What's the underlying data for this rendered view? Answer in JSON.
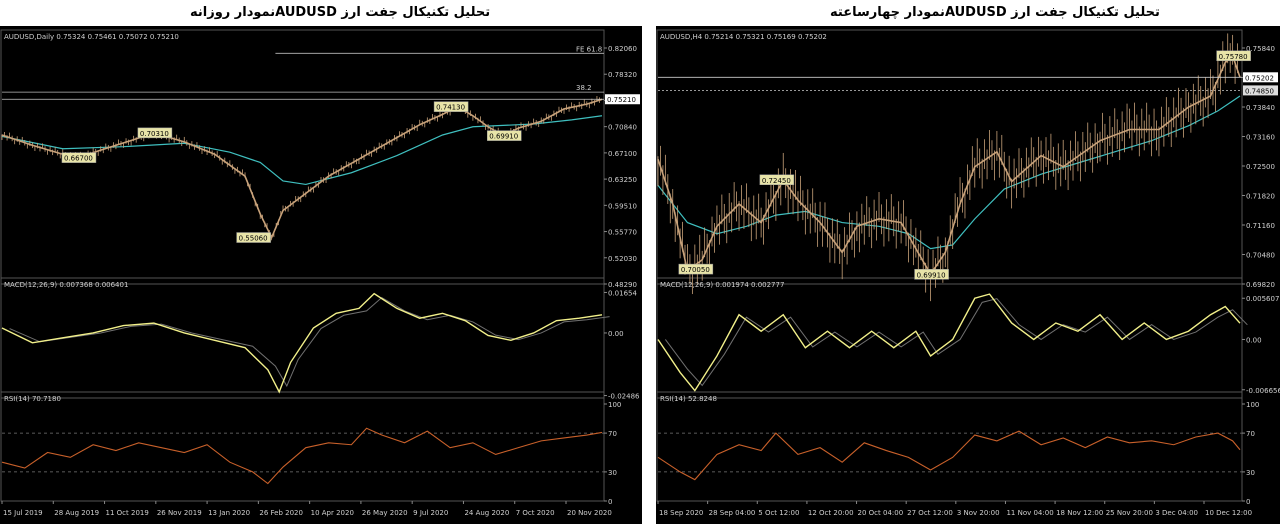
{
  "titles": {
    "left": "تحلیل تکنیکال جفت ارز  AUDUSDنمودار روزانه",
    "right": "تحلیل تکنیکال جفت ارز  AUDUSDنمودار چهارساعته"
  },
  "colors": {
    "background": "#000000",
    "grid": "#2a2a2a",
    "candle": "#c8a27a",
    "ma": "#3fbfbf",
    "macd": "#f2f08a",
    "signal": "#707070",
    "rsi": "#c8602a",
    "text": "#d0d0d0",
    "label_bg": "#e8e4a8"
  },
  "chart_data": [
    {
      "type": "line",
      "panel_id": "left",
      "price_header": "AUDUSD,Daily  0.75324 0.75461 0.75072 0.75210",
      "price_ticks": [
        "0.82060",
        "0.78320",
        "0.74580",
        "0.70840",
        "0.67100",
        "0.63250",
        "0.59510",
        "0.55770",
        "0.52030",
        "0.48290"
      ],
      "price_ylim": [
        0.4829,
        0.8355
      ],
      "current_price": "0.75210",
      "fib_labels": [
        {
          "text": "FE 61.8",
          "price": 0.819
        },
        {
          "text": "38.2",
          "price": 0.7625
        }
      ],
      "price_path": [
        [
          0,
          0.7
        ],
        [
          4,
          0.685
        ],
        [
          8,
          0.672
        ],
        [
          10,
          0.667
        ],
        [
          13,
          0.678
        ],
        [
          17,
          0.692
        ],
        [
          20,
          0.703
        ],
        [
          24,
          0.69
        ],
        [
          28,
          0.672
        ],
        [
          32,
          0.64
        ],
        [
          34,
          0.585
        ],
        [
          35.5,
          0.5506
        ],
        [
          37,
          0.59
        ],
        [
          40,
          0.615
        ],
        [
          43,
          0.64
        ],
        [
          47,
          0.665
        ],
        [
          51,
          0.69
        ],
        [
          55,
          0.715
        ],
        [
          58,
          0.73
        ],
        [
          60,
          0.7413
        ],
        [
          62,
          0.728
        ],
        [
          64,
          0.712
        ],
        [
          66,
          0.6991
        ],
        [
          68,
          0.71
        ],
        [
          71,
          0.72
        ],
        [
          74,
          0.738
        ],
        [
          77,
          0.745
        ],
        [
          79,
          0.752
        ]
      ],
      "ma_path": [
        [
          0,
          0.698
        ],
        [
          8,
          0.68
        ],
        [
          16,
          0.683
        ],
        [
          24,
          0.688
        ],
        [
          30,
          0.675
        ],
        [
          34,
          0.66
        ],
        [
          37,
          0.633
        ],
        [
          40,
          0.628
        ],
        [
          46,
          0.645
        ],
        [
          52,
          0.67
        ],
        [
          58,
          0.7
        ],
        [
          62,
          0.712
        ],
        [
          66,
          0.714
        ],
        [
          70,
          0.716
        ],
        [
          75,
          0.722
        ],
        [
          79,
          0.728
        ]
      ],
      "price_labels": [
        {
          "text": "0.66700",
          "x": 10,
          "price": 0.667
        },
        {
          "text": "0.70310",
          "x": 20,
          "price": 0.7031
        },
        {
          "text": "0.55060",
          "x": 33,
          "price": 0.5506
        },
        {
          "text": "0.74130",
          "x": 59,
          "price": 0.7413
        },
        {
          "text": "0.69910",
          "x": 66,
          "price": 0.6991
        }
      ],
      "macd_header": "MACD(12,26,9) 0.007368 0.006401",
      "macd_ticks": [
        "0.01654",
        "0.00",
        "-0.02486"
      ],
      "macd_ylim": [
        -0.0265,
        0.0175
      ],
      "macd_path": [
        [
          0,
          0.002
        ],
        [
          4,
          -0.004
        ],
        [
          8,
          -0.002
        ],
        [
          12,
          0.0
        ],
        [
          16,
          0.003
        ],
        [
          20,
          0.004
        ],
        [
          24,
          0.0
        ],
        [
          28,
          -0.003
        ],
        [
          32,
          -0.006
        ],
        [
          35,
          -0.015
        ],
        [
          36.5,
          -0.024
        ],
        [
          38,
          -0.012
        ],
        [
          41,
          0.002
        ],
        [
          44,
          0.008
        ],
        [
          47,
          0.01
        ],
        [
          49,
          0.016
        ],
        [
          52,
          0.01
        ],
        [
          55,
          0.006
        ],
        [
          58,
          0.008
        ],
        [
          61,
          0.005
        ],
        [
          64,
          -0.001
        ],
        [
          67,
          -0.003
        ],
        [
          70,
          0.0
        ],
        [
          73,
          0.005
        ],
        [
          76,
          0.006
        ],
        [
          79,
          0.007368
        ]
      ],
      "rsi_header": "RSI(14) 70.7180",
      "rsi_ticks": [
        "100",
        "70",
        "30",
        "0"
      ],
      "rsi_path": [
        [
          0,
          40
        ],
        [
          3,
          34
        ],
        [
          6,
          50
        ],
        [
          9,
          45
        ],
        [
          12,
          58
        ],
        [
          15,
          52
        ],
        [
          18,
          60
        ],
        [
          21,
          55
        ],
        [
          24,
          50
        ],
        [
          27,
          58
        ],
        [
          30,
          40
        ],
        [
          33,
          30
        ],
        [
          35,
          18
        ],
        [
          37,
          35
        ],
        [
          40,
          55
        ],
        [
          43,
          60
        ],
        [
          46,
          58
        ],
        [
          48,
          75
        ],
        [
          50,
          68
        ],
        [
          53,
          60
        ],
        [
          56,
          72
        ],
        [
          59,
          55
        ],
        [
          62,
          60
        ],
        [
          65,
          48
        ],
        [
          68,
          55
        ],
        [
          71,
          62
        ],
        [
          74,
          65
        ],
        [
          77,
          68
        ],
        [
          79,
          70.718
        ]
      ],
      "x_ticks": [
        "15 Jul 2019",
        "28 Aug 2019",
        "11 Oct 2019",
        "26 Nov 2019",
        "13 Jan 2020",
        "26 Feb 2020",
        "10 Apr 2020",
        "26 May 2020",
        "9 Jul 2020",
        "24 Aug 2020",
        "7 Oct 2020",
        "20 Nov 2020"
      ]
    },
    {
      "type": "line",
      "panel_id": "right",
      "price_header": "AUDUSD,H4  0.75214 0.75321 0.75169 0.75202",
      "price_ticks": [
        "0.75840",
        "0.74570",
        "0.73840",
        "0.73160",
        "0.72500",
        "0.71820",
        "0.71160",
        "0.70480",
        "0.69820"
      ],
      "price_ylim": [
        0.6965,
        0.7615
      ],
      "current_price": "0.75202",
      "reference_price": "0.74850",
      "price_path": [
        [
          0,
          0.73
        ],
        [
          2,
          0.718
        ],
        [
          4,
          0.7
        ],
        [
          6,
          0.703
        ],
        [
          8,
          0.712
        ],
        [
          11,
          0.718
        ],
        [
          14,
          0.713
        ],
        [
          17,
          0.7245
        ],
        [
          19,
          0.719
        ],
        [
          22,
          0.713
        ],
        [
          25,
          0.705
        ],
        [
          27,
          0.712
        ],
        [
          30,
          0.714
        ],
        [
          33,
          0.713
        ],
        [
          35,
          0.706
        ],
        [
          37,
          0.6991
        ],
        [
          39,
          0.705
        ],
        [
          41,
          0.718
        ],
        [
          43,
          0.728
        ],
        [
          46,
          0.732
        ],
        [
          48,
          0.724
        ],
        [
          52,
          0.731
        ],
        [
          55,
          0.728
        ],
        [
          60,
          0.735
        ],
        [
          64,
          0.738
        ],
        [
          68,
          0.738
        ],
        [
          72,
          0.744
        ],
        [
          75,
          0.747
        ],
        [
          77,
          0.756
        ],
        [
          78,
          0.7578
        ],
        [
          79,
          0.752
        ]
      ],
      "ma_path": [
        [
          0,
          0.723
        ],
        [
          4,
          0.713
        ],
        [
          8,
          0.71
        ],
        [
          12,
          0.712
        ],
        [
          16,
          0.715
        ],
        [
          20,
          0.716
        ],
        [
          25,
          0.713
        ],
        [
          30,
          0.712
        ],
        [
          34,
          0.71
        ],
        [
          37,
          0.706
        ],
        [
          40,
          0.707
        ],
        [
          43,
          0.714
        ],
        [
          47,
          0.722
        ],
        [
          52,
          0.726
        ],
        [
          57,
          0.729
        ],
        [
          62,
          0.732
        ],
        [
          67,
          0.735
        ],
        [
          72,
          0.739
        ],
        [
          76,
          0.743
        ],
        [
          79,
          0.747
        ]
      ],
      "price_labels": [
        {
          "text": "0.70050",
          "x": 5,
          "price": 0.7005
        },
        {
          "text": "0.72450",
          "x": 16,
          "price": 0.7245
        },
        {
          "text": "0.69910",
          "x": 37,
          "price": 0.6991
        },
        {
          "text": "0.75780",
          "x": 78,
          "price": 0.7578
        }
      ],
      "macd_header": "MACD(12,26,9) 0.001974 0.002777",
      "macd_ticks": [
        "0.005607",
        "0.00",
        "-0.006656"
      ],
      "macd_ylim": [
        -0.0071,
        0.006
      ],
      "macd_path": [
        [
          0,
          0.0
        ],
        [
          3,
          -0.004
        ],
        [
          5,
          -0.0062
        ],
        [
          8,
          -0.002
        ],
        [
          11,
          0.003
        ],
        [
          14,
          0.001
        ],
        [
          17,
          0.003
        ],
        [
          20,
          -0.001
        ],
        [
          23,
          0.001
        ],
        [
          26,
          -0.001
        ],
        [
          29,
          0.001
        ],
        [
          32,
          -0.001
        ],
        [
          35,
          0.001
        ],
        [
          37,
          -0.002
        ],
        [
          40,
          0.0
        ],
        [
          43,
          0.005
        ],
        [
          45,
          0.0055
        ],
        [
          48,
          0.002
        ],
        [
          51,
          0.0
        ],
        [
          54,
          0.002
        ],
        [
          57,
          0.001
        ],
        [
          60,
          0.003
        ],
        [
          63,
          0.0
        ],
        [
          66,
          0.002
        ],
        [
          69,
          0.0
        ],
        [
          72,
          0.001
        ],
        [
          75,
          0.003
        ],
        [
          77,
          0.004
        ],
        [
          79,
          0.001974
        ]
      ],
      "rsi_header": "RSI(14) 52.8248",
      "rsi_ticks": [
        "100",
        "70",
        "30",
        "0"
      ],
      "rsi_path": [
        [
          0,
          45
        ],
        [
          3,
          30
        ],
        [
          5,
          22
        ],
        [
          8,
          48
        ],
        [
          11,
          58
        ],
        [
          14,
          52
        ],
        [
          16,
          70
        ],
        [
          19,
          48
        ],
        [
          22,
          55
        ],
        [
          25,
          40
        ],
        [
          28,
          60
        ],
        [
          31,
          52
        ],
        [
          34,
          45
        ],
        [
          37,
          32
        ],
        [
          40,
          45
        ],
        [
          43,
          68
        ],
        [
          46,
          62
        ],
        [
          49,
          72
        ],
        [
          52,
          58
        ],
        [
          55,
          65
        ],
        [
          58,
          55
        ],
        [
          61,
          66
        ],
        [
          64,
          60
        ],
        [
          67,
          62
        ],
        [
          70,
          58
        ],
        [
          73,
          66
        ],
        [
          76,
          70
        ],
        [
          78,
          62
        ],
        [
          79,
          52.8248
        ]
      ],
      "x_ticks": [
        "18 Sep 2020",
        "28 Sep 04:00",
        "5 Oct 12:00",
        "12 Oct 20:00",
        "20 Oct 04:00",
        "27 Oct 12:00",
        "3 Nov 20:00",
        "11 Nov 04:00",
        "18 Nov 12:00",
        "25 Nov 20:00",
        "3 Dec 04:00",
        "10 Dec 12:00"
      ]
    }
  ]
}
